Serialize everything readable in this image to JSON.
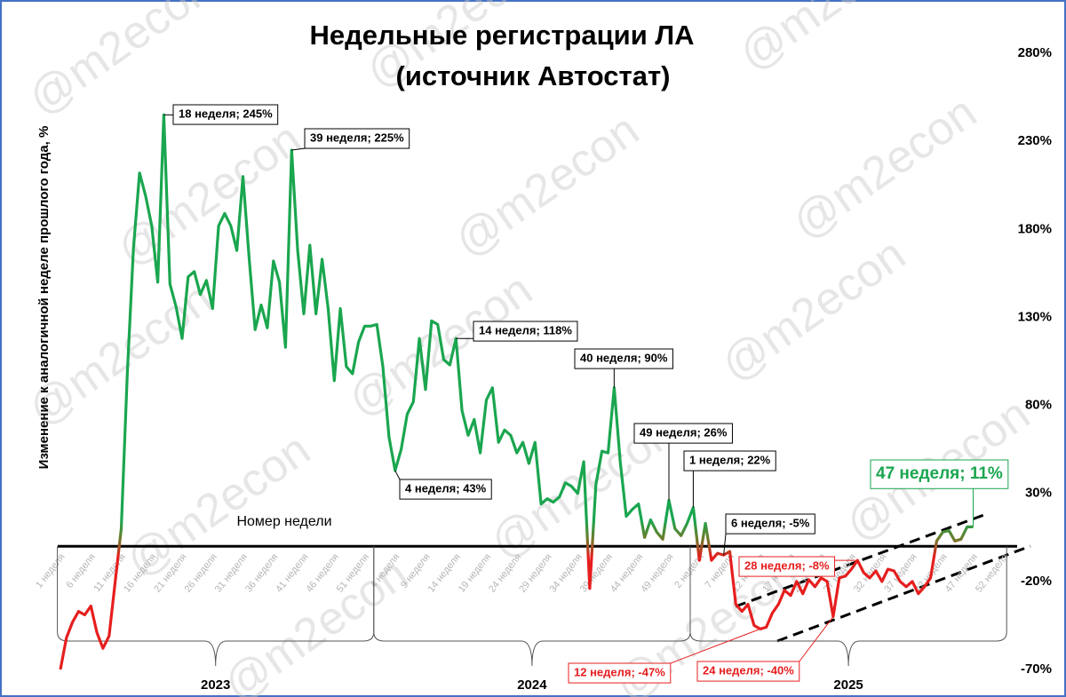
{
  "chart_data": {
    "type": "line",
    "title": "Недельные регистрации ЛА",
    "subtitle": "(источник Автостат)",
    "y_label": "Изменение к аналогичной неделе прошлого года, %",
    "x_label": "Номер недели",
    "watermark": "@m2econ",
    "categories": [
      "1 неделя",
      null,
      null,
      null,
      null,
      "6 неделя",
      null,
      null,
      null,
      null,
      "11 неделя",
      null,
      null,
      null,
      null,
      "16 неделя",
      null,
      null,
      null,
      null,
      "21 неделя",
      null,
      null,
      null,
      null,
      "26 неделя",
      null,
      null,
      null,
      null,
      "31 неделя",
      null,
      null,
      null,
      null,
      "36 неделя",
      null,
      null,
      null,
      null,
      "41 неделя",
      null,
      null,
      null,
      null,
      "46 неделя",
      null,
      null,
      null,
      null,
      "51 неделя",
      null,
      null,
      null,
      null,
      "4 неделя",
      null,
      null,
      null,
      null,
      "9 неделя",
      null,
      null,
      null,
      null,
      "14 неделя",
      null,
      null,
      null,
      null,
      "19 неделя",
      null,
      null,
      null,
      null,
      "24 неделя",
      null,
      null,
      null,
      null,
      "29 неделя",
      null,
      null,
      null,
      null,
      "34 неделя",
      null,
      null,
      null,
      null,
      "39 неделя",
      null,
      null,
      null,
      null,
      "44 неделя",
      null,
      null,
      null,
      null,
      "49 неделя",
      null,
      null,
      null,
      null,
      "2 неделя",
      null,
      null,
      null,
      null,
      "7 неделя",
      null,
      null,
      null,
      null,
      "12 неделя",
      null,
      null,
      null,
      null,
      "17 неделя",
      null,
      null,
      null,
      null,
      "22 неделя",
      null,
      null,
      null,
      null,
      "27 неделя",
      null,
      null,
      null,
      null,
      "32 неделя",
      null,
      null,
      null,
      null,
      "37 неделя",
      null,
      null,
      null,
      null,
      "42 неделя",
      null,
      null,
      null,
      null,
      "47 неделя",
      null,
      null,
      null,
      null,
      "52 неделя"
    ],
    "values": [
      -70,
      -52,
      -43,
      -37,
      -39,
      -34,
      -49,
      -58,
      -51,
      -20,
      10,
      98,
      169,
      212,
      199,
      182,
      150,
      245,
      149,
      136,
      118,
      153,
      156,
      143,
      151,
      135,
      182,
      189,
      182,
      168,
      210,
      164,
      123,
      137,
      124,
      162,
      150,
      113,
      225,
      168,
      132,
      171,
      132,
      163,
      135,
      94,
      135,
      102,
      98,
      116,
      125,
      125,
      126,
      102,
      62,
      43,
      55,
      75,
      82,
      118,
      89,
      128,
      126,
      106,
      103,
      118,
      77,
      63,
      72,
      53,
      83,
      90,
      59,
      66,
      63,
      53,
      59,
      47,
      59,
      24,
      27,
      25,
      28,
      36,
      34,
      30,
      48,
      -24,
      35,
      54,
      53,
      90,
      48,
      17,
      21,
      24,
      5,
      15,
      8,
      4,
      26,
      10,
      6,
      13,
      22,
      -8,
      13,
      -8,
      -4,
      -5,
      -3,
      -33,
      -37,
      -33,
      -45,
      -47,
      -46,
      -38,
      -33,
      -25,
      -28,
      -20,
      -27,
      -19,
      -23,
      -18,
      -20,
      -40,
      -18,
      -17,
      -13,
      -8,
      -15,
      -18,
      -14,
      -20,
      -13,
      -14,
      -20,
      -23,
      -20,
      -27,
      -23,
      -18,
      3,
      8,
      9,
      3,
      4,
      11,
      11,
      null,
      null,
      null,
      null,
      null
    ],
    "color_above_zero": "#1aa64f",
    "color_near_zero": "#6f7a2a",
    "color_below_zero": "#e61e1e",
    "groups": [
      {
        "label": "2023",
        "weeks": 52
      },
      {
        "label": "2024",
        "weeks": 52
      },
      {
        "label": "2025",
        "weeks": 52
      }
    ],
    "ylim": [
      -70,
      280
    ],
    "yticks": [
      {
        "value": -70,
        "label": "-70%"
      },
      {
        "value": -20,
        "label": "-20%"
      },
      {
        "value": 30,
        "label": "30%"
      },
      {
        "value": 80,
        "label": "80%"
      },
      {
        "value": 130,
        "label": "130%"
      },
      {
        "value": 180,
        "label": "180%"
      },
      {
        "value": 230,
        "label": "230%"
      },
      {
        "value": 280,
        "label": "280%"
      }
    ],
    "grid": false,
    "annotations": [
      {
        "text": "18 неделя; 245%",
        "point": 17,
        "color": "#000000"
      },
      {
        "text": "39 неделя; 225%",
        "point": 38,
        "color": "#000000"
      },
      {
        "text": "14 неделя; 118%",
        "point": 65,
        "color": "#000000"
      },
      {
        "text": "40 неделя; 90%",
        "point": 91,
        "color": "#000000"
      },
      {
        "text": "4 неделя; 43%",
        "point": 55,
        "color": "#000000"
      },
      {
        "text": "49 неделя; 26%",
        "point": 100,
        "color": "#000000"
      },
      {
        "text": "1 неделя; 22%",
        "point": 104,
        "color": "#000000"
      },
      {
        "text": "6 неделя; -5%",
        "point": 109,
        "color": "#000000"
      },
      {
        "text": "28 неделя; -8%",
        "point": 131,
        "color": "#e61e1e"
      },
      {
        "text": "12 неделя; -47%",
        "point": 115,
        "color": "#e61e1e"
      },
      {
        "text": "24 неделя; -40%",
        "point": 127,
        "color": "#e61e1e"
      },
      {
        "text": "47 неделя; 11%",
        "point": 150,
        "color": "#1aa64f"
      }
    ]
  }
}
